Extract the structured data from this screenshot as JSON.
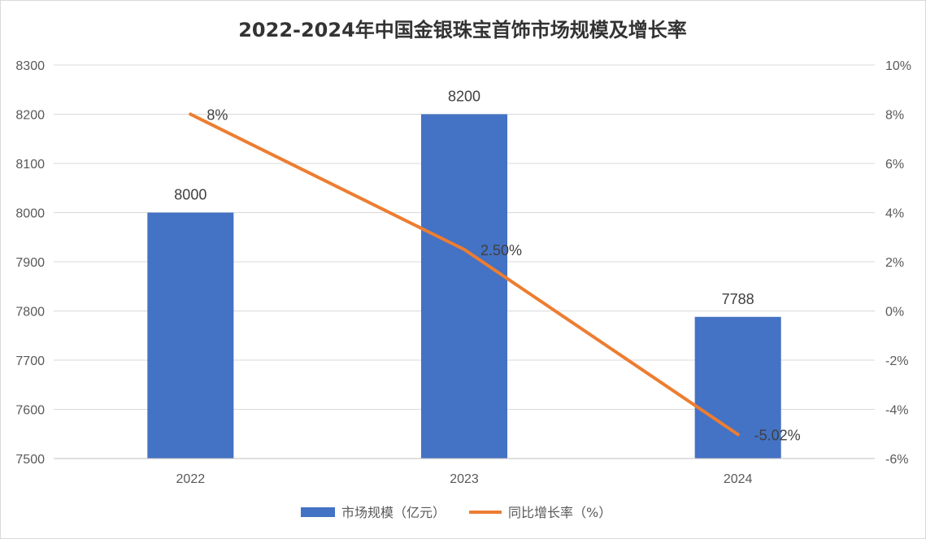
{
  "chart_data": {
    "type": "bar",
    "title": "2022-2024年中国金银珠宝首饰市场规模及增长率",
    "categories": [
      "2022",
      "2023",
      "2024"
    ],
    "series": [
      {
        "name": "市场规模（亿元）",
        "type": "bar",
        "axis": "left",
        "color": "#4472C4",
        "values": [
          8000,
          8200,
          7788
        ],
        "labels": [
          "8000",
          "8200",
          "7788"
        ]
      },
      {
        "name": "同比增长率（%）",
        "type": "line",
        "axis": "right",
        "color": "#ED7D31",
        "values": [
          8,
          2.5,
          -5.02
        ],
        "labels": [
          "8%",
          "2.50%",
          "-5.02%"
        ]
      }
    ],
    "y_left": {
      "min": 7500,
      "max": 8300,
      "step": 100,
      "ticks": [
        "7500",
        "7600",
        "7700",
        "7800",
        "7900",
        "8000",
        "8100",
        "8200",
        "8300"
      ]
    },
    "y_right": {
      "min": -6,
      "max": 10,
      "step": 2,
      "ticks": [
        "-6%",
        "-4%",
        "-2%",
        "0%",
        "2%",
        "4%",
        "6%",
        "8%",
        "10%"
      ]
    },
    "grid": true,
    "legend_position": "bottom"
  }
}
